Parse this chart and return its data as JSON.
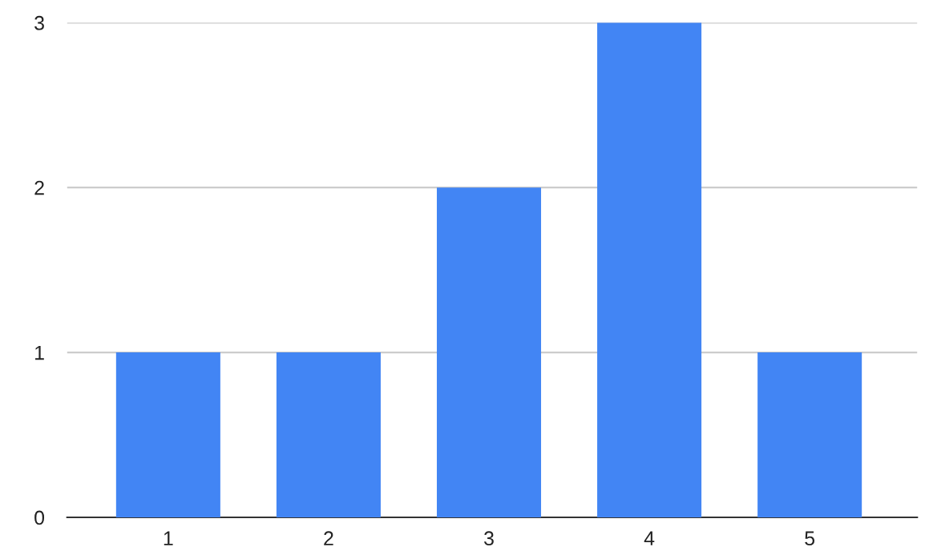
{
  "chart_data": {
    "type": "bar",
    "categories": [
      "1",
      "2",
      "3",
      "4",
      "5"
    ],
    "values": [
      1,
      1,
      2,
      3,
      1
    ],
    "color": "#4285f4",
    "ylim": [
      0,
      3
    ],
    "yticks": [
      0,
      1,
      2,
      3
    ],
    "grid": "y"
  }
}
